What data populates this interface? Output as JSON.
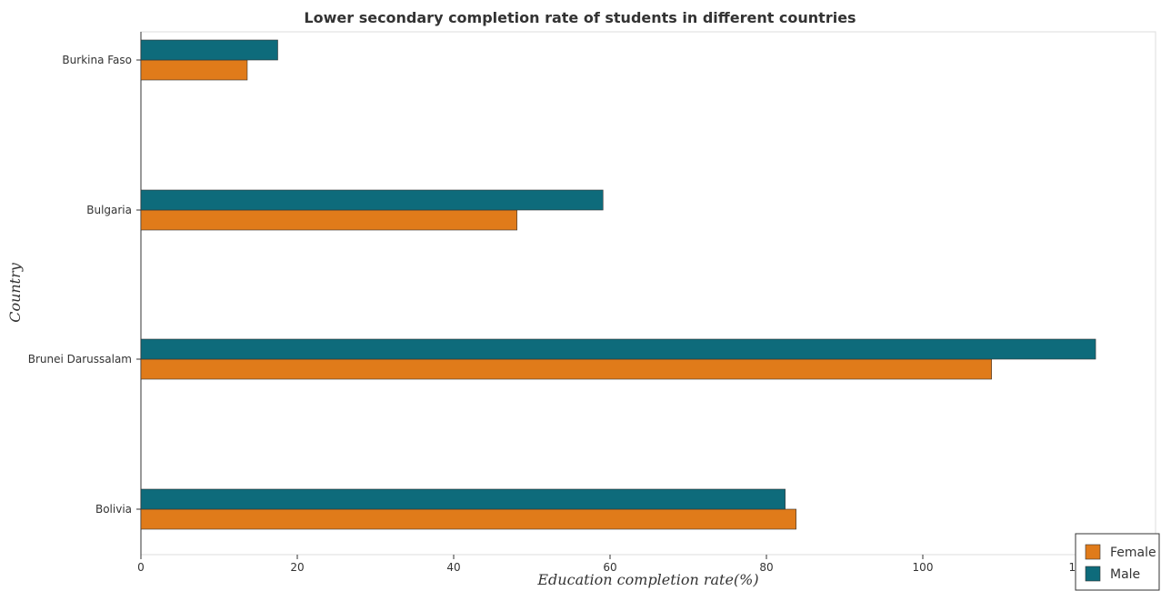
{
  "chart_data": {
    "type": "bar",
    "orientation": "horizontal",
    "title": "Lower secondary completion rate of students in different countries",
    "xlabel": "Education completion rate(%)",
    "ylabel": "Country",
    "categories": [
      "Bolivia",
      "Brunei Darussalam",
      "Bulgaria",
      "Burkina Faso"
    ],
    "series": [
      {
        "name": "Female",
        "color": "#e07b1a",
        "values": [
          83.8,
          108.8,
          48.1,
          13.6
        ]
      },
      {
        "name": "Male",
        "color": "#0e6b7b",
        "values": [
          82.4,
          122.1,
          59.1,
          17.5
        ]
      }
    ],
    "xticks": [
      0,
      20,
      40,
      60,
      80,
      100,
      120
    ],
    "xlim": [
      0,
      128
    ],
    "grid": false,
    "legend_position": "bottom-right"
  }
}
